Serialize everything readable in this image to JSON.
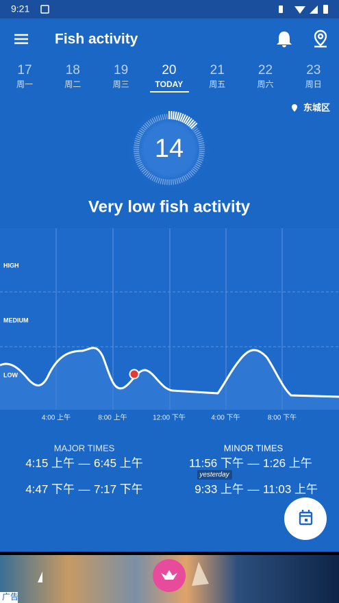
{
  "status_bar": {
    "time": "9:21"
  },
  "app_bar": {
    "title": "Fish activity"
  },
  "days": [
    {
      "date": "17",
      "label": "周一"
    },
    {
      "date": "18",
      "label": "周二"
    },
    {
      "date": "19",
      "label": "周三"
    },
    {
      "date": "20",
      "label": "TODAY"
    },
    {
      "date": "21",
      "label": "周五"
    },
    {
      "date": "22",
      "label": "周六"
    },
    {
      "date": "23",
      "label": "周日"
    }
  ],
  "location": "东城区",
  "score": {
    "value": 14,
    "description": "Very low fish activity"
  },
  "chart": {
    "levels": [
      "HIGH",
      "MEDIUM",
      "LOW"
    ],
    "x_labels": [
      "4:00 上午",
      "8:00 上午",
      "12:00 下午",
      "4:00 下午",
      "8:00 下午"
    ]
  },
  "separator": "—",
  "major_times": {
    "title": "MAJOR TIMES",
    "periods": [
      {
        "start": "4:15 上午",
        "end": "6:45 上午"
      },
      {
        "start": "4:47 下午",
        "end": "7:17 下午"
      }
    ]
  },
  "minor_times": {
    "title": "MINOR TIMES",
    "periods": [
      {
        "start": "11:56 下午",
        "note": "yesterday",
        "end": "1:26 上午"
      },
      {
        "start": "9:33 上午",
        "end": "11:03 上午"
      }
    ]
  },
  "ad": {
    "label": "广告"
  }
}
